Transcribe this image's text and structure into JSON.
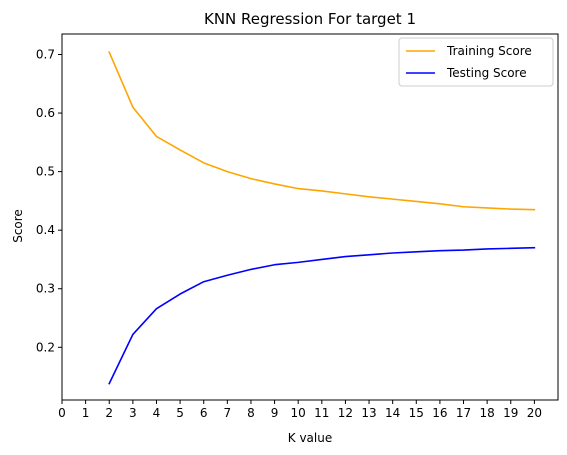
{
  "chart_data": {
    "type": "line",
    "title": "KNN Regression For target 1",
    "xlabel": "K value",
    "ylabel": "Score",
    "xlim": [
      0,
      21
    ],
    "ylim": [
      0.11,
      0.735
    ],
    "x_ticks": [
      0,
      1,
      2,
      3,
      4,
      5,
      6,
      7,
      8,
      9,
      10,
      11,
      12,
      13,
      14,
      15,
      16,
      17,
      18,
      19,
      20
    ],
    "y_ticks": [
      0.2,
      0.3,
      0.4,
      0.5,
      0.6,
      0.7
    ],
    "y_tick_labels": [
      "0.2",
      "0.3",
      "0.4",
      "0.5",
      "0.6",
      "0.7"
    ],
    "grid": false,
    "legend_position": "top-right",
    "x": [
      2,
      3,
      4,
      5,
      6,
      7,
      8,
      9,
      10,
      11,
      12,
      13,
      14,
      15,
      16,
      17,
      18,
      19,
      20
    ],
    "series": [
      {
        "name": "Training Score",
        "color": "#ffa500",
        "values": [
          0.704,
          0.61,
          0.56,
          0.537,
          0.515,
          0.5,
          0.488,
          0.479,
          0.471,
          0.467,
          0.462,
          0.457,
          0.453,
          0.449,
          0.445,
          0.44,
          0.438,
          0.436,
          0.435
        ]
      },
      {
        "name": "Testing Score",
        "color": "#0000ff",
        "values": [
          0.138,
          0.222,
          0.266,
          0.291,
          0.312,
          0.323,
          0.333,
          0.341,
          0.345,
          0.35,
          0.355,
          0.358,
          0.361,
          0.363,
          0.365,
          0.366,
          0.368,
          0.369,
          0.37
        ]
      }
    ]
  }
}
